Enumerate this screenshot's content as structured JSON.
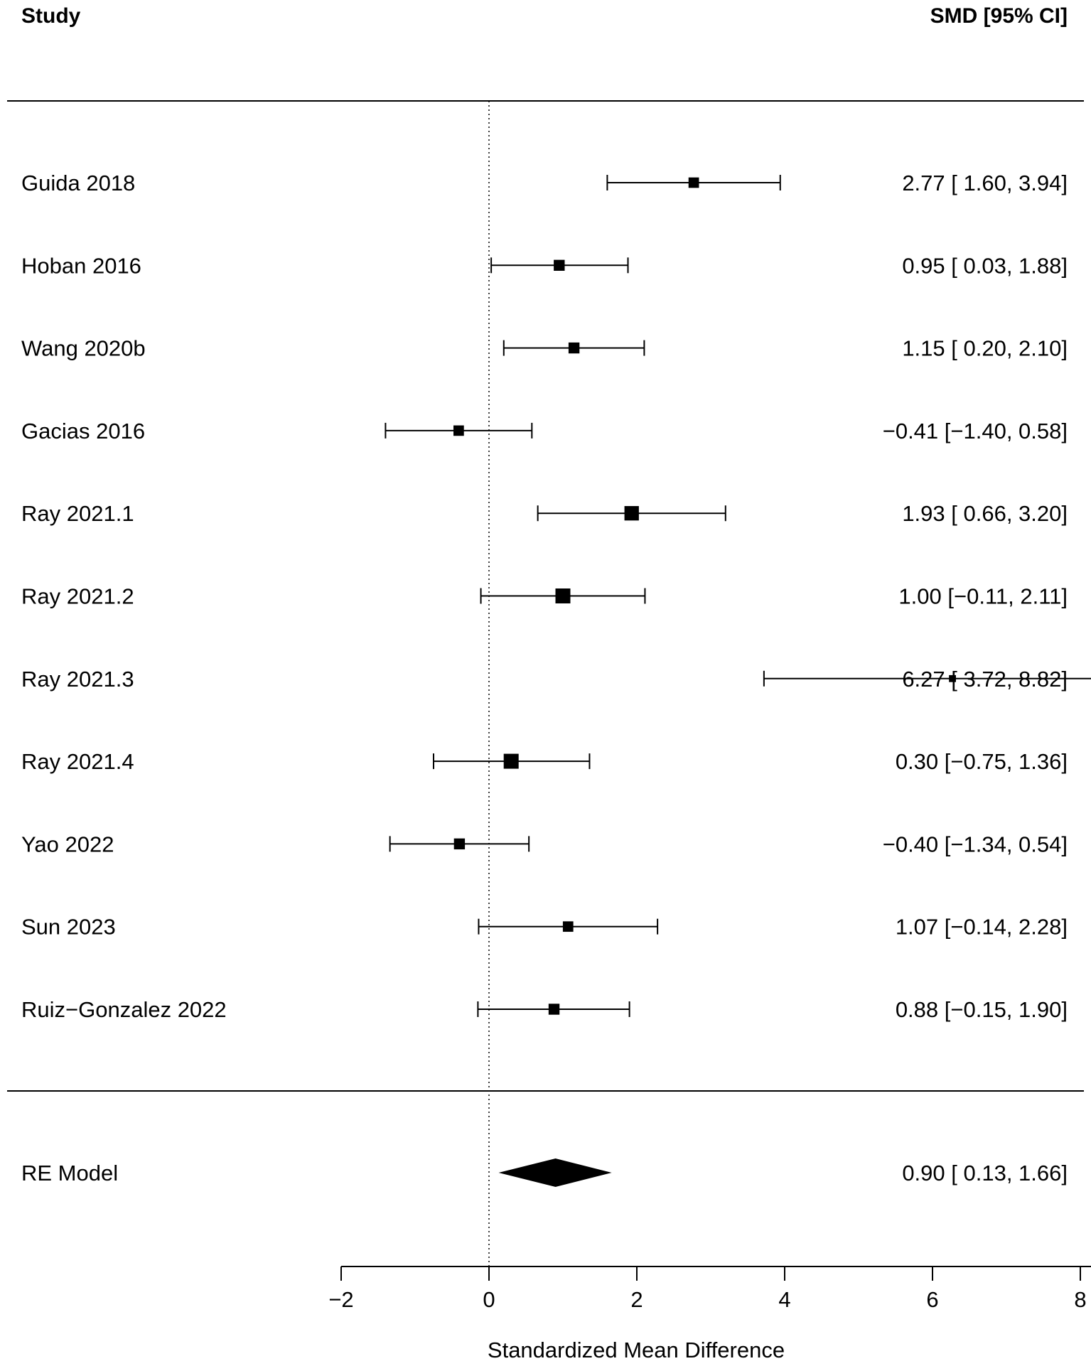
{
  "chart_data": {
    "type": "forest",
    "headers": {
      "study": "Study",
      "estimate": "SMD [95% CI]"
    },
    "xlabel": "Standardized Mean Difference",
    "xlim": [
      -2,
      10
    ],
    "xticks": [
      -2,
      0,
      2,
      4,
      6,
      8,
      10
    ],
    "reference_line": 0,
    "studies": [
      {
        "name": "Guida 2018",
        "est": 2.77,
        "lo": 1.6,
        "hi": 3.94,
        "weight": 0.55,
        "label": "2.77 [ 1.60, 3.94]"
      },
      {
        "name": "Hoban 2016",
        "est": 0.95,
        "lo": 0.03,
        "hi": 1.88,
        "weight": 0.6,
        "label": "0.95 [ 0.03, 1.88]"
      },
      {
        "name": "Wang 2020b",
        "est": 1.15,
        "lo": 0.2,
        "hi": 2.1,
        "weight": 0.6,
        "label": "1.15 [ 0.20, 2.10]"
      },
      {
        "name": "Gacias 2016",
        "est": -0.41,
        "lo": -1.4,
        "hi": 0.58,
        "weight": 0.55,
        "label": "−0.41 [−1.40, 0.58]"
      },
      {
        "name": "Ray 2021.1",
        "est": 1.93,
        "lo": 0.66,
        "hi": 3.2,
        "weight": 0.95,
        "label": "1.93 [ 0.66, 3.20]"
      },
      {
        "name": "Ray 2021.2",
        "est": 1.0,
        "lo": -0.11,
        "hi": 2.11,
        "weight": 1.0,
        "label": "1.00 [−0.11, 2.11]"
      },
      {
        "name": "Ray 2021.3",
        "est": 6.27,
        "lo": 3.72,
        "hi": 8.82,
        "weight": 0.2,
        "label": "6.27 [ 3.72, 8.82]"
      },
      {
        "name": "Ray 2021.4",
        "est": 0.3,
        "lo": -0.75,
        "hi": 1.36,
        "weight": 1.0,
        "label": "0.30 [−0.75, 1.36]"
      },
      {
        "name": "Yao 2022",
        "est": -0.4,
        "lo": -1.34,
        "hi": 0.54,
        "weight": 0.6,
        "label": "−0.40 [−1.34, 0.54]"
      },
      {
        "name": "Sun 2023",
        "est": 1.07,
        "lo": -0.14,
        "hi": 2.28,
        "weight": 0.55,
        "label": "1.07 [−0.14, 2.28]"
      },
      {
        "name": "Ruiz−Gonzalez 2022",
        "est": 0.88,
        "lo": -0.15,
        "hi": 1.9,
        "weight": 0.6,
        "label": "0.88 [−0.15, 1.90]"
      }
    ],
    "summary": {
      "name": "RE Model",
      "est": 0.9,
      "lo": 0.13,
      "hi": 1.66,
      "label": "0.90 [ 0.13, 1.66]"
    }
  }
}
